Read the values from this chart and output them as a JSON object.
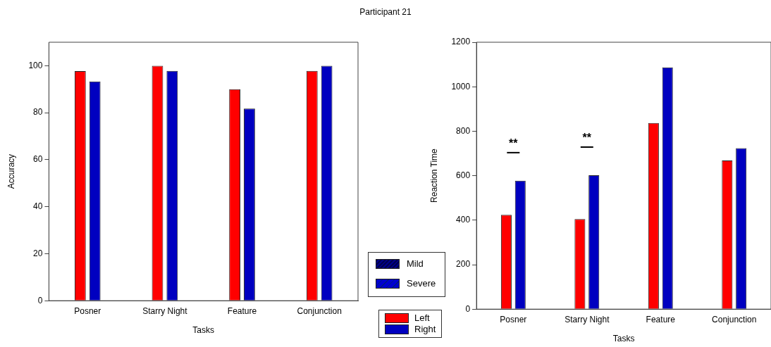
{
  "chart_data": [
    {
      "type": "bar",
      "title": "Participant 21",
      "xlabel": "Tasks",
      "ylabel": "Accuracy",
      "categories": [
        "Posner",
        "Starry Night",
        "Feature",
        "Conjunction"
      ],
      "series": [
        {
          "name": "Left",
          "color": "#ff0000",
          "values": [
            97.7,
            100,
            90,
            97.8
          ]
        },
        {
          "name": "Right",
          "color": "#0000c0",
          "values": [
            93.3,
            97.8,
            81.8,
            100
          ]
        }
      ],
      "ylim": [
        0,
        110
      ],
      "yticks": [
        0,
        20,
        40,
        60,
        80,
        100
      ],
      "grid": false,
      "legend": "bottom right",
      "annotations": [
        "Mild",
        "Severe"
      ]
    },
    {
      "type": "bar",
      "xlabel": "Tasks",
      "ylabel": "Reaction Time",
      "categories": [
        "Posner",
        "Starry Night",
        "Feature",
        "Conjunction"
      ],
      "series": [
        {
          "color": "#ff0000",
          "values": [
            424,
            405,
            837,
            668
          ]
        },
        {
          "color": "#0000c0",
          "values": [
            577,
            602,
            1087,
            724
          ]
        }
      ],
      "ylim": [
        0,
        1200
      ],
      "yticks": [
        0,
        200,
        400,
        600,
        800,
        1000,
        1200
      ],
      "grid": false,
      "legend": false,
      "annotations": [
        "**",
        "**"
      ]
    }
  ]
}
